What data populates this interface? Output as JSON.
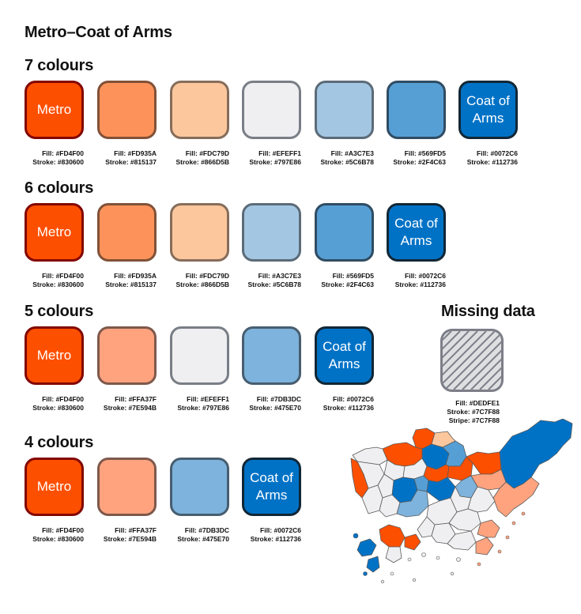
{
  "title": "Metro–Coat of Arms",
  "groups": [
    {
      "heading": "7 colours",
      "swatches": [
        {
          "label": "Metro",
          "fill": "#FD4F00",
          "stroke": "#830600",
          "fill_text": "Fill: #FD4F00",
          "stroke_text": "Stroke: #830600"
        },
        {
          "label": "",
          "fill": "#FD935A",
          "stroke": "#815137",
          "fill_text": "Fill: #FD935A",
          "stroke_text": "Stroke: #815137"
        },
        {
          "label": "",
          "fill": "#FDC79D",
          "stroke": "#866D5B",
          "fill_text": "Fill: #FDC79D",
          "stroke_text": "Stroke: #866D5B"
        },
        {
          "label": "",
          "fill": "#EFEFF1",
          "stroke": "#797E86",
          "fill_text": "Fill: #EFEFF1",
          "stroke_text": "Stroke: #797E86"
        },
        {
          "label": "",
          "fill": "#A3C7E3",
          "stroke": "#5C6B78",
          "fill_text": "Fill: #A3C7E3",
          "stroke_text": "Stroke: #5C6B78"
        },
        {
          "label": "",
          "fill": "#569FD5",
          "stroke": "#2F4C63",
          "fill_text": "Fill: #569FD5",
          "stroke_text": "Stroke: #2F4C63"
        },
        {
          "label": "Coat of Arms",
          "fill": "#0072C6",
          "stroke": "#112736",
          "fill_text": "Fill: #0072C6",
          "stroke_text": "Stroke: #112736"
        }
      ]
    },
    {
      "heading": "6 colours",
      "swatches": [
        {
          "label": "Metro",
          "fill": "#FD4F00",
          "stroke": "#830600",
          "fill_text": "Fill: #FD4F00",
          "stroke_text": "Stroke: #830600"
        },
        {
          "label": "",
          "fill": "#FD935A",
          "stroke": "#815137",
          "fill_text": "Fill: #FD935A",
          "stroke_text": "Stroke: #815137"
        },
        {
          "label": "",
          "fill": "#FDC79D",
          "stroke": "#866D5B",
          "fill_text": "Fill: #FDC79D",
          "stroke_text": "Stroke: #866D5B"
        },
        {
          "label": "",
          "fill": "#A3C7E3",
          "stroke": "#5C6B78",
          "fill_text": "Fill: #A3C7E3",
          "stroke_text": "Stroke: #5C6B78"
        },
        {
          "label": "",
          "fill": "#569FD5",
          "stroke": "#2F4C63",
          "fill_text": "Fill: #569FD5",
          "stroke_text": "Stroke: #2F4C63"
        },
        {
          "label": "Coat of Arms",
          "fill": "#0072C6",
          "stroke": "#112736",
          "fill_text": "Fill: #0072C6",
          "stroke_text": "Stroke: #112736"
        }
      ]
    },
    {
      "heading": "5 colours",
      "swatches": [
        {
          "label": "Metro",
          "fill": "#FD4F00",
          "stroke": "#830600",
          "fill_text": "Fill: #FD4F00",
          "stroke_text": "Stroke: #830600"
        },
        {
          "label": "",
          "fill": "#FFA37F",
          "stroke": "#7E594B",
          "fill_text": "Fill: #FFA37F",
          "stroke_text": "Stroke: #7E594B"
        },
        {
          "label": "",
          "fill": "#EFEFF1",
          "stroke": "#797E86",
          "fill_text": "Fill: #EFEFF1",
          "stroke_text": "Stroke: #797E86"
        },
        {
          "label": "",
          "fill": "#7DB3DC",
          "stroke": "#475E70",
          "fill_text": "Fill: #7DB3DC",
          "stroke_text": "Stroke: #475E70"
        },
        {
          "label": "Coat of Arms",
          "fill": "#0072C6",
          "stroke": "#112736",
          "fill_text": "Fill: #0072C6",
          "stroke_text": "Stroke: #112736"
        }
      ]
    },
    {
      "heading": "4 colours",
      "swatches": [
        {
          "label": "Metro",
          "fill": "#FD4F00",
          "stroke": "#830600",
          "fill_text": "Fill: #FD4F00",
          "stroke_text": "Stroke: #830600"
        },
        {
          "label": "",
          "fill": "#FFA37F",
          "stroke": "#7E594B",
          "fill_text": "Fill: #FFA37F",
          "stroke_text": "Stroke: #7E594B"
        },
        {
          "label": "",
          "fill": "#7DB3DC",
          "stroke": "#475E70",
          "fill_text": "Fill: #7DB3DC",
          "stroke_text": "Stroke: #475E70"
        },
        {
          "label": "Coat of Arms",
          "fill": "#0072C6",
          "stroke": "#112736",
          "fill_text": "Fill: #0072C6",
          "stroke_text": "Stroke: #112736"
        }
      ]
    }
  ],
  "missing": {
    "heading": "Missing data",
    "fill": "#DEDFE1",
    "stroke": "#7C7F88",
    "stripe": "#7C7F88",
    "fill_text": "Fill: #DEDFE1",
    "stroke_text": "Stroke: #7C7F88",
    "stripe_text": "Stripe: #7C7F88"
  }
}
